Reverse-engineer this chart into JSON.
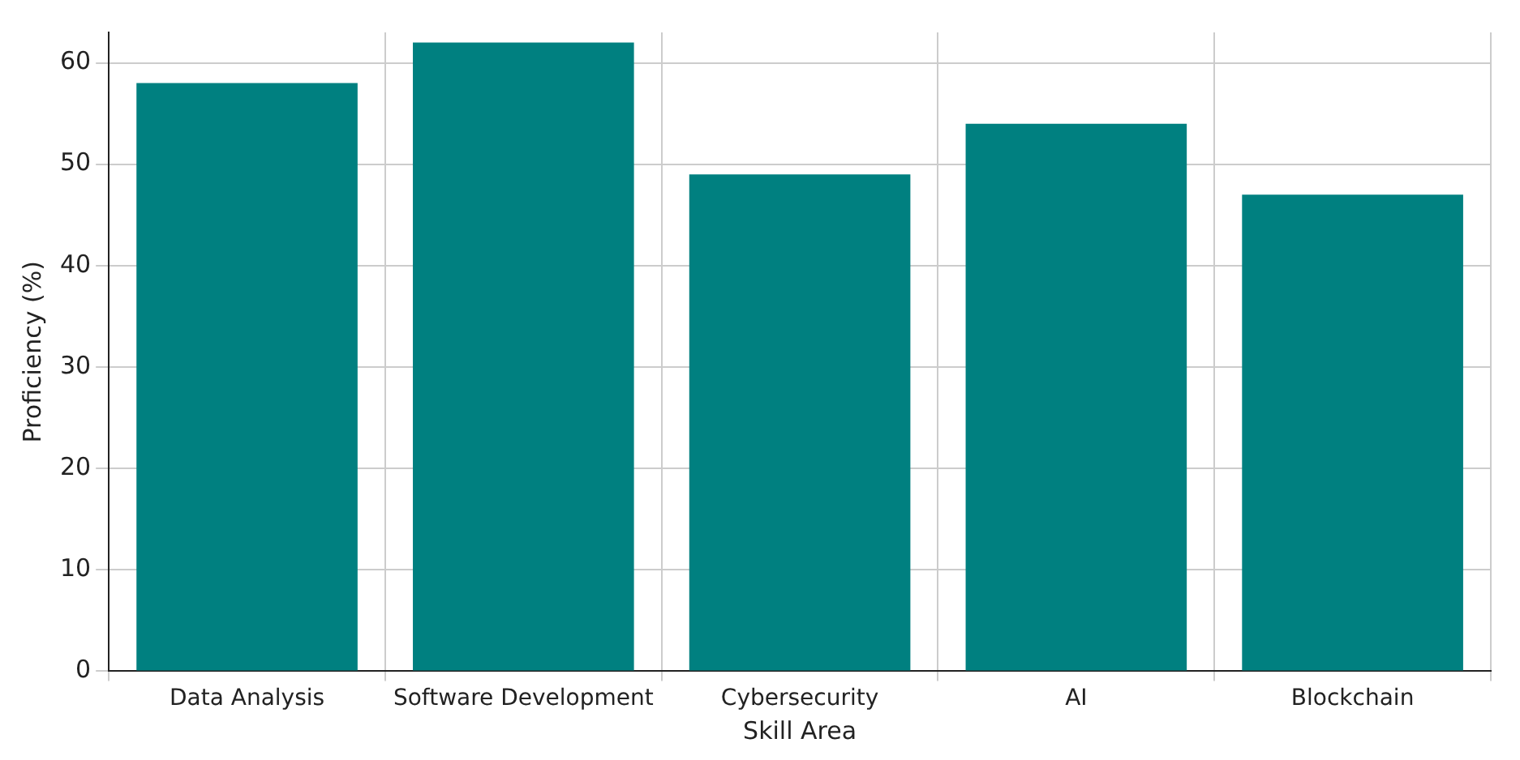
{
  "chart_data": {
    "type": "bar",
    "xlabel": "Skill Area",
    "ylabel": "Proficiency (%)",
    "categories": [
      "Data Analysis",
      "Software Development",
      "Cybersecurity",
      "AI",
      "Blockchain"
    ],
    "values": [
      58,
      62,
      49,
      54,
      47
    ],
    "color": "#008080",
    "ylim": [
      0,
      63
    ],
    "yticks": [
      0,
      10,
      20,
      30,
      40,
      50,
      60
    ],
    "grid": true
  }
}
